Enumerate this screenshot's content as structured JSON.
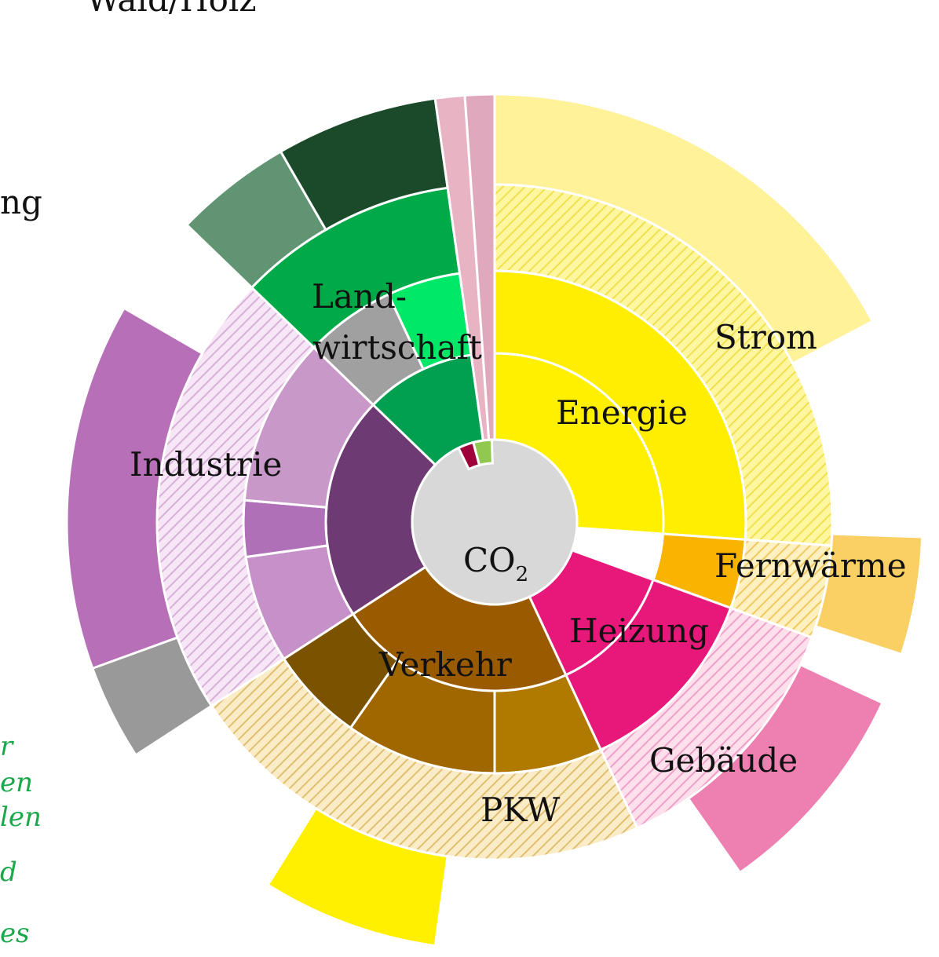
{
  "labels": {
    "wald": "Wald/Holz",
    "cut_left": "ng",
    "land_1": "Land-",
    "land_2": "wirtschaft",
    "strom": "Strom",
    "energie": "Energie",
    "industrie": "Industrie",
    "fernwaerme": "Fernwärme",
    "heizung": "Heizung",
    "verkehr": "Verkehr",
    "gebaeude": "Gebäude",
    "pkw": "PKW"
  },
  "center": {
    "label": "CO",
    "subscript": "2"
  },
  "notes": [
    "r",
    "en",
    "len",
    "d",
    "es"
  ]
}
